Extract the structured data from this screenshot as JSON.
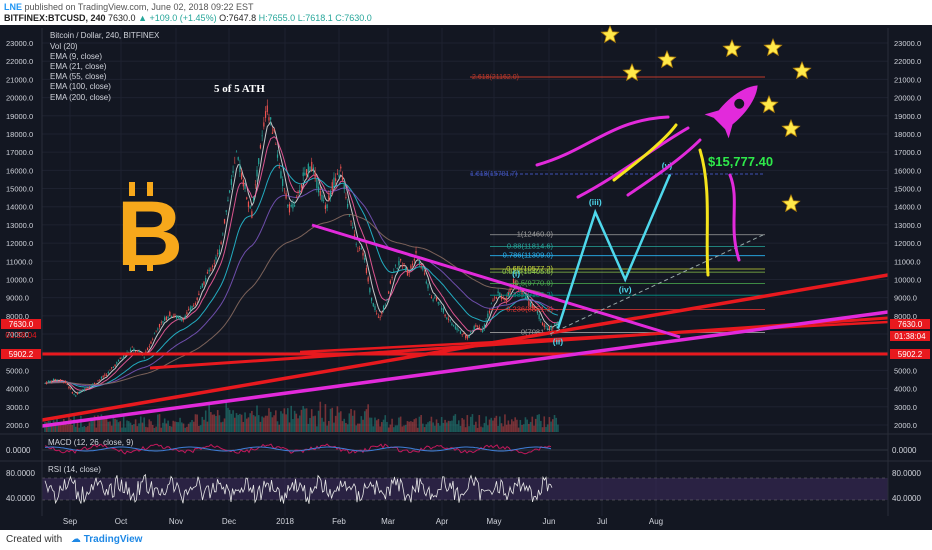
{
  "header": {
    "brand": "LNE",
    "published": "published on TradingView.com, June 02, 2018 09:22 EST",
    "symbol": "BITFINEX:BTCUSD, 240",
    "last": "7630.0",
    "change": "+109.0 (+1.45%)",
    "o": "O:7647.8",
    "h": "H:7655.0",
    "l": "L:7618.1",
    "c": "C:7630.0"
  },
  "legend": {
    "title": "Bitcoin / Dollar, 240, BITFINEX",
    "lines": [
      "Vol (20)",
      "EMA (9, close)",
      "EMA (21, close)",
      "EMA (55, close)",
      "EMA (100, close)",
      "EMA (200, close)"
    ]
  },
  "annotations": {
    "ath": "5 of 5 ATH",
    "target": "$15,777.40",
    "waves": [
      "(i)",
      "(ii)",
      "(iii)",
      "(iv)",
      "(v)"
    ],
    "fib_extension_top": "2.618(21162.0)",
    "fib_extension_mid": "1.618(15781.7)",
    "fib_levels": [
      "1(12460.0)",
      "0.88(11814.6)",
      "0.786(11309.0)",
      "0.65(10577.2)",
      "0.618(10405.6)",
      "0.5(9770.9)",
      "0.382(9136.2)",
      "0.236(8351.3)",
      "0(7081.7)"
    ]
  },
  "price_tags": {
    "current": "7630.0",
    "countdown": "01:38:04",
    "support": "5902.2"
  },
  "price_axis": {
    "ticks": [
      "23000.0",
      "22000.0",
      "21000.0",
      "20000.0",
      "19000.0",
      "18000.0",
      "17000.0",
      "16000.0",
      "15000.0",
      "14000.0",
      "13000.0",
      "12000.0",
      "11000.0",
      "10000.0",
      "9000.0",
      "8000.0",
      "7000.0",
      "6000.0",
      "5000.0",
      "4000.0",
      "3000.0",
      "2000.0"
    ]
  },
  "time_axis": {
    "ticks": [
      "Sep",
      "Oct",
      "Nov",
      "Dec",
      "2018",
      "Feb",
      "Mar",
      "Apr",
      "May",
      "Jun",
      "Jul",
      "Aug"
    ]
  },
  "macd": {
    "label": "MACD (12, 26, close, 9)",
    "tick": "0.0000"
  },
  "rsi": {
    "label": "RSI (14, close)",
    "ticks": [
      "80.0000",
      "40.0000"
    ]
  },
  "footer": {
    "created": "Created with",
    "tv": "TradingView"
  },
  "colors": {
    "background": "#131722",
    "trend_red": "#e8191e",
    "trend_magenta": "#e22adb",
    "projection": "#4fd8ec",
    "bitcoin_gold": "#f7a81b",
    "target_green": "#2ee84a",
    "stars": "#ffe94a"
  },
  "chart_data": {
    "type": "line",
    "title": "Bitcoin / Dollar, 240, BITFINEX",
    "x_ticks": [
      "Sep",
      "Oct",
      "Nov",
      "Dec",
      "2018",
      "Feb",
      "Mar",
      "Apr",
      "May",
      "Jun",
      "Jul",
      "Aug"
    ],
    "ylim": [
      1800,
      23600
    ],
    "y_ticks": [
      2000,
      3000,
      4000,
      5000,
      6000,
      7000,
      8000,
      9000,
      10000,
      11000,
      12000,
      13000,
      14000,
      15000,
      16000,
      17000,
      18000,
      19000,
      20000,
      21000,
      22000,
      23000
    ],
    "series": [
      {
        "values": [
          [
            0,
            4300
          ],
          [
            0.4,
            4500
          ],
          [
            0.8,
            4400
          ],
          [
            1.2,
            3600
          ],
          [
            1.5,
            3900
          ],
          [
            2.0,
            4300
          ],
          [
            2.5,
            4800
          ],
          [
            3.0,
            5600
          ],
          [
            3.5,
            6200
          ],
          [
            4.0,
            5800
          ],
          [
            4.5,
            7300
          ],
          [
            5.0,
            8100
          ],
          [
            5.5,
            7800
          ],
          [
            6.0,
            8600
          ],
          [
            6.5,
            10200
          ],
          [
            7.0,
            11500
          ],
          [
            7.4,
            14800
          ],
          [
            7.7,
            16800
          ],
          [
            8.0,
            15200
          ],
          [
            8.3,
            13500
          ],
          [
            8.6,
            16700
          ],
          [
            8.9,
            19400
          ],
          [
            9.2,
            18000
          ],
          [
            9.5,
            15500
          ],
          [
            9.8,
            13900
          ],
          [
            10.1,
            14300
          ],
          [
            10.4,
            15800
          ],
          [
            10.7,
            16300
          ],
          [
            11.0,
            14900
          ],
          [
            11.3,
            14000
          ],
          [
            11.6,
            15400
          ],
          [
            11.9,
            16000
          ],
          [
            12.2,
            13800
          ],
          [
            12.5,
            11800
          ],
          [
            12.8,
            11400
          ],
          [
            13.1,
            9000
          ],
          [
            13.4,
            7800
          ],
          [
            13.7,
            8800
          ],
          [
            14.0,
            10500
          ],
          [
            14.3,
            11000
          ],
          [
            14.6,
            10300
          ],
          [
            14.9,
            11500
          ],
          [
            15.2,
            10500
          ],
          [
            15.5,
            9000
          ],
          [
            15.8,
            8800
          ],
          [
            16.1,
            8000
          ],
          [
            16.4,
            7500
          ],
          [
            16.7,
            7100
          ],
          [
            17.0,
            6800
          ],
          [
            17.3,
            7500
          ],
          [
            17.6,
            7200
          ],
          [
            17.9,
            8500
          ],
          [
            18.2,
            9300
          ],
          [
            18.5,
            8800
          ],
          [
            18.8,
            9900
          ],
          [
            19.1,
            9500
          ],
          [
            19.4,
            8700
          ],
          [
            19.7,
            8400
          ],
          [
            20.0,
            7500
          ],
          [
            20.3,
            7300
          ],
          [
            20.6,
            7630
          ]
        ]
      },
      {
        "name": "projection",
        "values": [
          [
            20.6,
            7300
          ],
          [
            22.1,
            13700
          ],
          [
            23.3,
            10000
          ],
          [
            25.1,
            15777.4
          ]
        ]
      }
    ],
    "wave_points": [
      {
        "label": "(i)",
        "x": 19.0,
        "y": 9990
      },
      {
        "label": "(ii)",
        "x": 20.6,
        "y": 7081.7
      },
      {
        "label": "(iii)",
        "x": 22.1,
        "y": 13700
      },
      {
        "label": "(iv)",
        "x": 23.3,
        "y": 10000
      },
      {
        "label": "(v)",
        "x": 25.1,
        "y": 15777.4
      }
    ],
    "fib_levels": [
      {
        "ratio": 2.618,
        "price": 21162.0
      },
      {
        "ratio": 1.618,
        "price": 15781.7
      },
      {
        "ratio": 1,
        "price": 12460.0
      },
      {
        "ratio": 0.88,
        "price": 11814.6
      },
      {
        "ratio": 0.786,
        "price": 11309.0
      },
      {
        "ratio": 0.65,
        "price": 10577.2
      },
      {
        "ratio": 0.618,
        "price": 10405.6
      },
      {
        "ratio": 0.5,
        "price": 9770.9
      },
      {
        "ratio": 0.382,
        "price": 9136.2
      },
      {
        "ratio": 0.236,
        "price": 8351.3
      },
      {
        "ratio": 0,
        "price": 7081.7
      }
    ],
    "current_price": 7630.0,
    "support_price": 5902.2,
    "target_price": 15777.4,
    "indicators": [
      "Vol (20)",
      "EMA (9, close)",
      "EMA (21, close)",
      "EMA (55, close)",
      "EMA (100, close)",
      "EMA (200, close)",
      "MACD (12, 26, close, 9)",
      "RSI (14, close)"
    ],
    "grid": true
  }
}
